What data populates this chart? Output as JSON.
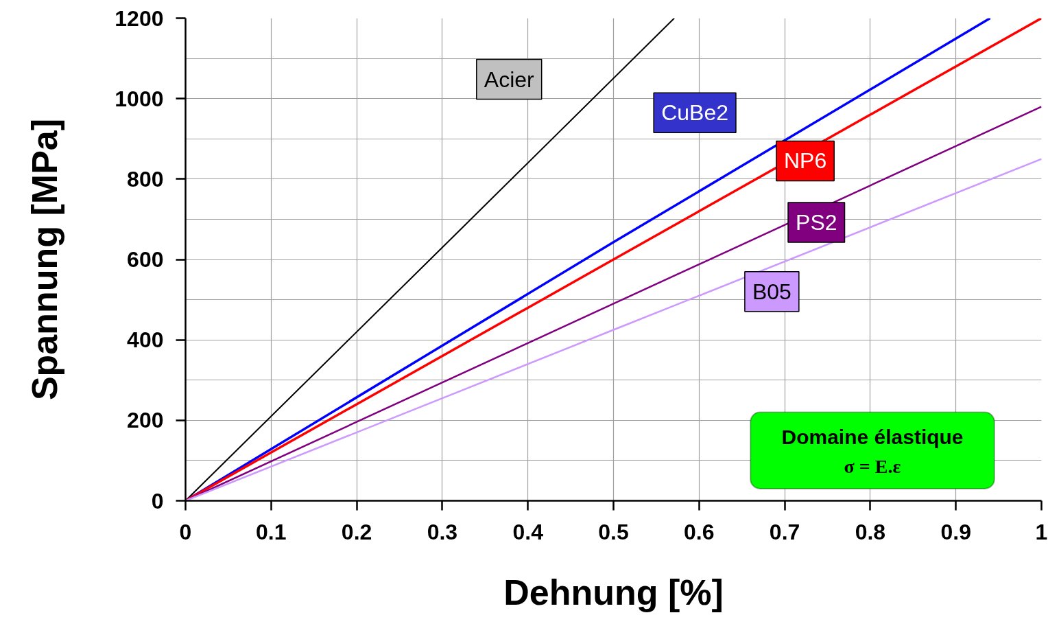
{
  "chart_data": {
    "type": "line",
    "xlabel": "Dehnung [%]",
    "ylabel": "Spannung [MPa]",
    "xlim": [
      0,
      1
    ],
    "ylim": [
      0,
      1200
    ],
    "xticks": [
      0,
      0.1,
      0.2,
      0.3,
      0.4,
      0.5,
      0.6,
      0.7,
      0.8,
      0.9,
      1
    ],
    "yticks": [
      0,
      200,
      400,
      600,
      800,
      1000,
      1200
    ],
    "grid": true,
    "line_style": "solid",
    "marker": "none",
    "series": [
      {
        "name": "Acier",
        "color": "#000000",
        "x": [
          0,
          0.3,
          0.571
        ],
        "values": [
          0,
          630,
          1200
        ]
      },
      {
        "name": "CuBe2",
        "color": "#0000ff",
        "x": [
          0,
          0.5,
          0.94
        ],
        "values": [
          0,
          643,
          1200
        ]
      },
      {
        "name": "NP6",
        "color": "#ff0000",
        "x": [
          0,
          0.5,
          1
        ],
        "values": [
          0,
          600,
          1200
        ]
      },
      {
        "name": "PS2",
        "color": "#800080",
        "x": [
          0,
          0.5,
          1
        ],
        "values": [
          0,
          490,
          980
        ]
      },
      {
        "name": "B05",
        "color": "#cc99ff",
        "x": [
          0,
          0.5,
          1
        ],
        "values": [
          0,
          425,
          850
        ]
      }
    ],
    "annotations": [
      "Domaine élastique",
      "σ = E.ε"
    ]
  }
}
